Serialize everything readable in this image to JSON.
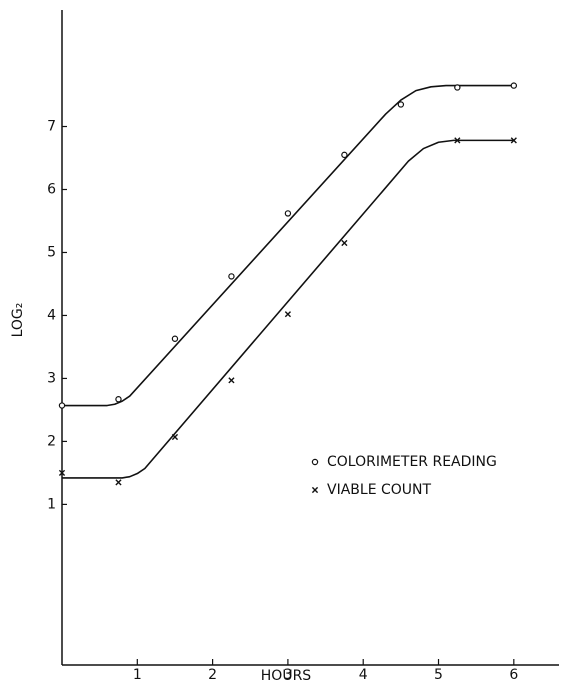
{
  "chart_data": {
    "type": "scatter",
    "xlabel": "HOURS",
    "ylabel": "LOG₂",
    "xlim": [
      0,
      6.6
    ],
    "ylim": [
      -1.55,
      8.85
    ],
    "xticks": [
      1,
      2,
      3,
      4,
      5,
      6
    ],
    "yticks": [
      1,
      2,
      3,
      4,
      5,
      6,
      7
    ],
    "series": [
      {
        "name": "COLORIMETER READING",
        "color": "#111111",
        "marker": "o",
        "x": [
          0,
          0.75,
          1.5,
          2.25,
          3,
          3.75,
          4.5,
          5.25,
          6
        ],
        "values": [
          2.57,
          2.67,
          3.63,
          4.62,
          5.62,
          6.55,
          7.35,
          7.62,
          7.65
        ]
      },
      {
        "name": "VIABLE COUNT",
        "color": "#111111",
        "marker": "x",
        "x": [
          0,
          0.75,
          1.5,
          2.25,
          3,
          3.75,
          5.25,
          6
        ],
        "values": [
          1.5,
          1.35,
          2.07,
          2.97,
          4.02,
          5.15,
          6.78,
          6.78
        ]
      }
    ],
    "curves": [
      {
        "color": "#111111",
        "x": [
          0,
          0.6,
          0.7,
          0.8,
          0.9,
          4.3,
          4.5,
          4.7,
          4.9,
          5.1,
          6
        ],
        "values": [
          2.57,
          2.57,
          2.59,
          2.64,
          2.72,
          7.2,
          7.42,
          7.57,
          7.63,
          7.65,
          7.65
        ]
      },
      {
        "color": "#111111",
        "x": [
          0,
          0.8,
          0.9,
          1.0,
          1.1,
          4.6,
          4.8,
          5.0,
          5.2,
          6
        ],
        "values": [
          1.42,
          1.42,
          1.44,
          1.49,
          1.57,
          6.45,
          6.65,
          6.75,
          6.78,
          6.78
        ]
      }
    ],
    "legend": "lower-right"
  }
}
